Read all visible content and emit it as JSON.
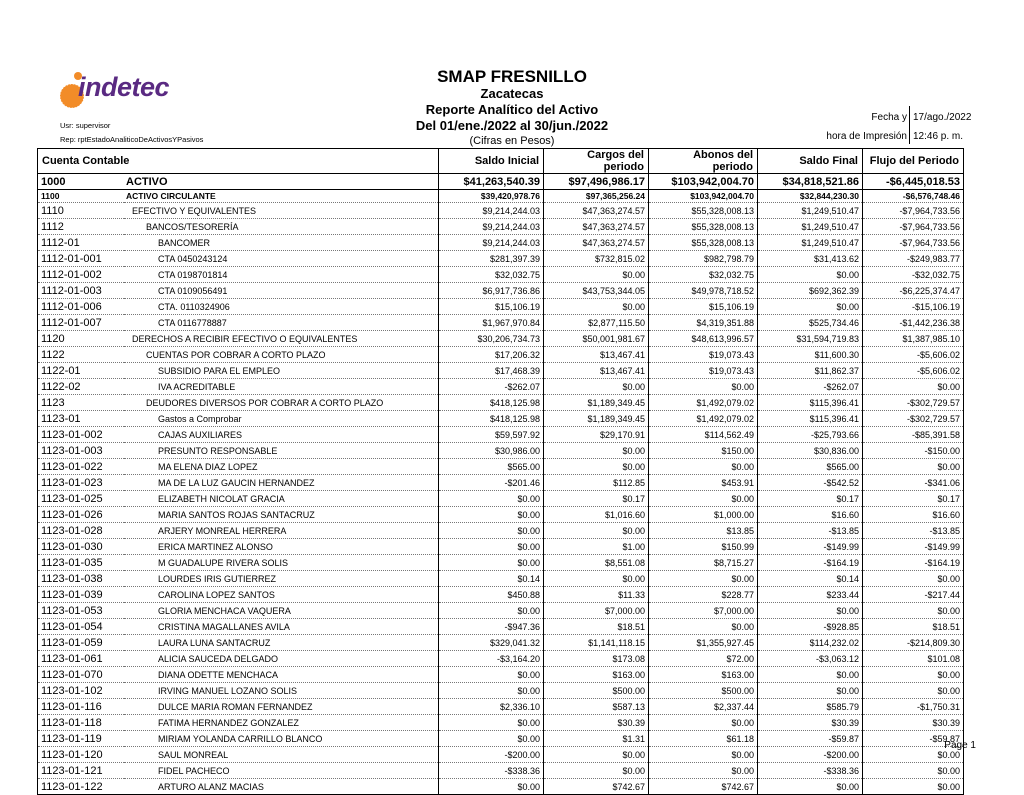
{
  "header": {
    "logo_text": "indetec",
    "org": "SMAP FRESNILLO",
    "state": "Zacatecas",
    "report": "Reporte Analítico del Activo",
    "period": "Del 01/ene./2022 al 30/jun./2022",
    "units": "(Cifras en Pesos)",
    "user": "Usr: supervisor",
    "rep": "Rep: rptEstadoAnaliticoDeActivosYPasivos",
    "fecha_label": "Fecha y",
    "fecha_value": "17/ago./2022",
    "hora_label": "hora de Impresión",
    "hora_value": "12:46 p. m."
  },
  "table": {
    "columns": [
      "Cuenta Contable",
      "Saldo Inicial",
      "Cargos del periodo",
      "Abonos del periodo",
      "Saldo Final",
      "Flujo del Periodo"
    ],
    "rows": [
      {
        "level": 0,
        "indent": 0,
        "code": "1000",
        "name": "ACTIVO",
        "values": [
          "$41,263,540.39",
          "$97,496,986.17",
          "$103,942,004.70",
          "$34,818,521.86",
          "-$6,445,018.53"
        ]
      },
      {
        "level": 1,
        "indent": 0,
        "code": "1100",
        "name": "ACTIVO CIRCULANTE",
        "values": [
          "$39,420,978.76",
          "$97,365,256.24",
          "$103,942,004.70",
          "$32,844,230.30",
          "-$6,576,748.46"
        ]
      },
      {
        "level": 2,
        "indent": 0,
        "code": "1110",
        "name": "EFECTIVO Y EQUIVALENTES",
        "values": [
          "$9,214,244.03",
          "$47,363,274.57",
          "$55,328,008.13",
          "$1,249,510.47",
          "-$7,964,733.56"
        ]
      },
      {
        "level": 2,
        "indent": 1,
        "code": "1112",
        "name": "BANCOS/TESORERÍA",
        "values": [
          "$9,214,244.03",
          "$47,363,274.57",
          "$55,328,008.13",
          "$1,249,510.47",
          "-$7,964,733.56"
        ]
      },
      {
        "level": 3,
        "indent": 2,
        "code": "1112-01",
        "name": "BANCOMER",
        "values": [
          "$9,214,244.03",
          "$47,363,274.57",
          "$55,328,008.13",
          "$1,249,510.47",
          "-$7,964,733.56"
        ]
      },
      {
        "level": 3,
        "indent": 2,
        "code": "1112-01-001",
        "name": "CTA 0450243124",
        "values": [
          "$281,397.39",
          "$732,815.02",
          "$982,798.79",
          "$31,413.62",
          "-$249,983.77"
        ]
      },
      {
        "level": 3,
        "indent": 2,
        "code": "1112-01-002",
        "name": "CTA 0198701814",
        "values": [
          "$32,032.75",
          "$0.00",
          "$32,032.75",
          "$0.00",
          "-$32,032.75"
        ]
      },
      {
        "level": 3,
        "indent": 2,
        "code": "1112-01-003",
        "name": "CTA 0109056491",
        "values": [
          "$6,917,736.86",
          "$43,753,344.05",
          "$49,978,718.52",
          "$692,362.39",
          "-$6,225,374.47"
        ]
      },
      {
        "level": 3,
        "indent": 2,
        "code": "1112-01-006",
        "name": "CTA. 0110324906",
        "values": [
          "$15,106.19",
          "$0.00",
          "$15,106.19",
          "$0.00",
          "-$15,106.19"
        ]
      },
      {
        "level": 3,
        "indent": 2,
        "code": "1112-01-007",
        "name": "CTA 0116778887",
        "values": [
          "$1,967,970.84",
          "$2,877,115.50",
          "$4,319,351.88",
          "$525,734.46",
          "-$1,442,236.38"
        ]
      },
      {
        "level": 2,
        "indent": 0,
        "code": "1120",
        "name": "DERECHOS A RECIBIR EFECTIVO O EQUIVALENTES",
        "values": [
          "$30,206,734.73",
          "$50,001,981.67",
          "$48,613,996.57",
          "$31,594,719.83",
          "$1,387,985.10"
        ]
      },
      {
        "level": 2,
        "indent": 1,
        "code": "1122",
        "name": "CUENTAS POR COBRAR A CORTO PLAZO",
        "values": [
          "$17,206.32",
          "$13,467.41",
          "$19,073.43",
          "$11,600.30",
          "-$5,606.02"
        ]
      },
      {
        "level": 3,
        "indent": 2,
        "code": "1122-01",
        "name": "SUBSIDIO PARA EL EMPLEO",
        "values": [
          "$17,468.39",
          "$13,467.41",
          "$19,073.43",
          "$11,862.37",
          "-$5,606.02"
        ]
      },
      {
        "level": 3,
        "indent": 2,
        "code": "1122-02",
        "name": "IVA ACREDITABLE",
        "values": [
          "-$262.07",
          "$0.00",
          "$0.00",
          "-$262.07",
          "$0.00"
        ]
      },
      {
        "level": 2,
        "indent": 1,
        "code": "1123",
        "name": "DEUDORES DIVERSOS POR COBRAR A CORTO PLAZO",
        "values": [
          "$418,125.98",
          "$1,189,349.45",
          "$1,492,079.02",
          "$115,396.41",
          "-$302,729.57"
        ]
      },
      {
        "level": 3,
        "indent": 2,
        "code": "1123-01",
        "name": "Gastos a Comprobar",
        "values": [
          "$418,125.98",
          "$1,189,349.45",
          "$1,492,079.02",
          "$115,396.41",
          "-$302,729.57"
        ]
      },
      {
        "level": 3,
        "indent": 2,
        "code": "1123-01-002",
        "name": "CAJAS AUXILIARES",
        "values": [
          "$59,597.92",
          "$29,170.91",
          "$114,562.49",
          "-$25,793.66",
          "-$85,391.58"
        ]
      },
      {
        "level": 3,
        "indent": 2,
        "code": "1123-01-003",
        "name": "PRESUNTO RESPONSABLE",
        "values": [
          "$30,986.00",
          "$0.00",
          "$150.00",
          "$30,836.00",
          "-$150.00"
        ]
      },
      {
        "level": 3,
        "indent": 2,
        "code": "1123-01-022",
        "name": "MA ELENA DIAZ LOPEZ",
        "values": [
          "$565.00",
          "$0.00",
          "$0.00",
          "$565.00",
          "$0.00"
        ]
      },
      {
        "level": 3,
        "indent": 2,
        "code": "1123-01-023",
        "name": "MA DE LA LUZ GAUCIN HERNANDEZ",
        "values": [
          "-$201.46",
          "$112.85",
          "$453.91",
          "-$542.52",
          "-$341.06"
        ]
      },
      {
        "level": 3,
        "indent": 2,
        "code": "1123-01-025",
        "name": "ELIZABETH NICOLAT GRACIA",
        "values": [
          "$0.00",
          "$0.17",
          "$0.00",
          "$0.17",
          "$0.17"
        ]
      },
      {
        "level": 3,
        "indent": 2,
        "code": "1123-01-026",
        "name": "MARIA SANTOS ROJAS SANTACRUZ",
        "values": [
          "$0.00",
          "$1,016.60",
          "$1,000.00",
          "$16.60",
          "$16.60"
        ]
      },
      {
        "level": 3,
        "indent": 2,
        "code": "1123-01-028",
        "name": "ARJERY MONREAL HERRERA",
        "values": [
          "$0.00",
          "$0.00",
          "$13.85",
          "-$13.85",
          "-$13.85"
        ]
      },
      {
        "level": 3,
        "indent": 2,
        "code": "1123-01-030",
        "name": "ERICA MARTINEZ ALONSO",
        "values": [
          "$0.00",
          "$1.00",
          "$150.99",
          "-$149.99",
          "-$149.99"
        ]
      },
      {
        "level": 3,
        "indent": 2,
        "code": "1123-01-035",
        "name": "M GUADALUPE RIVERA SOLIS",
        "values": [
          "$0.00",
          "$8,551.08",
          "$8,715.27",
          "-$164.19",
          "-$164.19"
        ]
      },
      {
        "level": 3,
        "indent": 2,
        "code": "1123-01-038",
        "name": "LOURDES IRIS GUTIERREZ",
        "values": [
          "$0.14",
          "$0.00",
          "$0.00",
          "$0.14",
          "$0.00"
        ]
      },
      {
        "level": 3,
        "indent": 2,
        "code": "1123-01-039",
        "name": "CAROLINA LOPEZ SANTOS",
        "values": [
          "$450.88",
          "$11.33",
          "$228.77",
          "$233.44",
          "-$217.44"
        ]
      },
      {
        "level": 3,
        "indent": 2,
        "code": "1123-01-053",
        "name": "GLORIA MENCHACA VAQUERA",
        "values": [
          "$0.00",
          "$7,000.00",
          "$7,000.00",
          "$0.00",
          "$0.00"
        ]
      },
      {
        "level": 3,
        "indent": 2,
        "code": "1123-01-054",
        "name": "CRISTINA MAGALLANES AVILA",
        "values": [
          "-$947.36",
          "$18.51",
          "$0.00",
          "-$928.85",
          "$18.51"
        ]
      },
      {
        "level": 3,
        "indent": 2,
        "code": "1123-01-059",
        "name": "LAURA LUNA SANTACRUZ",
        "values": [
          "$329,041.32",
          "$1,141,118.15",
          "$1,355,927.45",
          "$114,232.02",
          "-$214,809.30"
        ]
      },
      {
        "level": 3,
        "indent": 2,
        "code": "1123-01-061",
        "name": "ALICIA SAUCEDA DELGADO",
        "values": [
          "-$3,164.20",
          "$173.08",
          "$72.00",
          "-$3,063.12",
          "$101.08"
        ]
      },
      {
        "level": 3,
        "indent": 2,
        "code": "1123-01-070",
        "name": "DIANA ODETTE MENCHACA",
        "values": [
          "$0.00",
          "$163.00",
          "$163.00",
          "$0.00",
          "$0.00"
        ]
      },
      {
        "level": 3,
        "indent": 2,
        "code": "1123-01-102",
        "name": "IRVING MANUEL LOZANO SOLIS",
        "values": [
          "$0.00",
          "$500.00",
          "$500.00",
          "$0.00",
          "$0.00"
        ]
      },
      {
        "level": 3,
        "indent": 2,
        "code": "1123-01-116",
        "name": "DULCE MARIA ROMAN FERNANDEZ",
        "values": [
          "$2,336.10",
          "$587.13",
          "$2,337.44",
          "$585.79",
          "-$1,750.31"
        ]
      },
      {
        "level": 3,
        "indent": 2,
        "code": "1123-01-118",
        "name": "FATIMA HERNANDEZ GONZALEZ",
        "values": [
          "$0.00",
          "$30.39",
          "$0.00",
          "$30.39",
          "$30.39"
        ]
      },
      {
        "level": 3,
        "indent": 2,
        "code": "1123-01-119",
        "name": "MIRIAM YOLANDA CARRILLO BLANCO",
        "values": [
          "$0.00",
          "$1.31",
          "$61.18",
          "-$59.87",
          "-$59.87"
        ]
      },
      {
        "level": 3,
        "indent": 2,
        "code": "1123-01-120",
        "name": "SAUL MONREAL",
        "values": [
          "-$200.00",
          "$0.00",
          "$0.00",
          "-$200.00",
          "$0.00"
        ]
      },
      {
        "level": 3,
        "indent": 2,
        "code": "1123-01-121",
        "name": "FIDEL PACHECO",
        "values": [
          "-$338.36",
          "$0.00",
          "$0.00",
          "-$338.36",
          "$0.00"
        ]
      },
      {
        "level": 3,
        "indent": 2,
        "code": "1123-01-122",
        "name": "ARTURO ALANZ MACIAS",
        "values": [
          "$0.00",
          "$742.67",
          "$742.67",
          "$0.00",
          "$0.00"
        ]
      }
    ]
  },
  "footer": {
    "page": "Page 1"
  },
  "colors": {
    "logo_purple": "#5a2a82",
    "logo_orange": "#f28c28"
  }
}
